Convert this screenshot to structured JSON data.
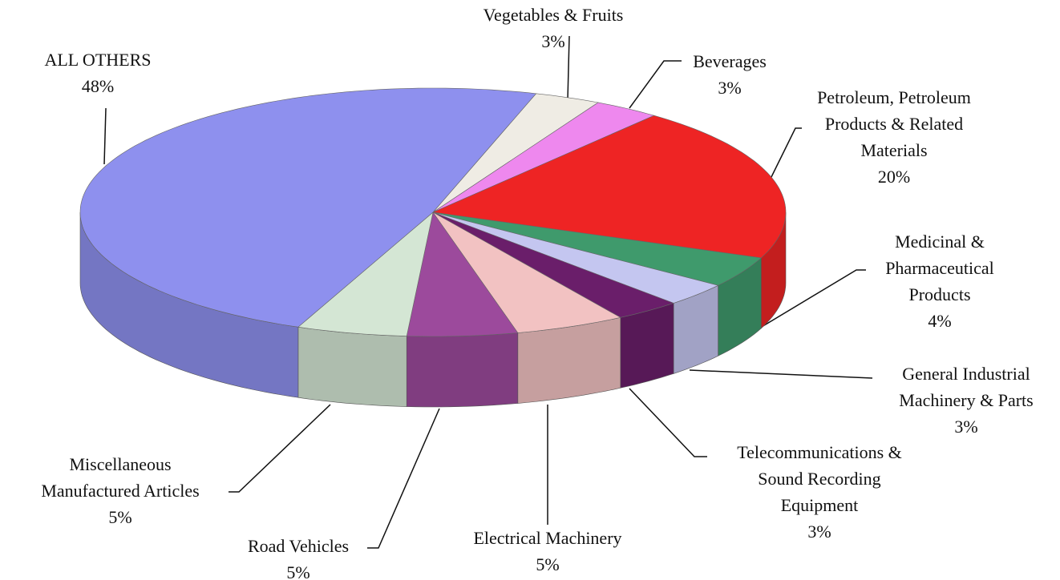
{
  "chart_data": {
    "type": "pie",
    "categories": [
      "Vegetables & Fruits",
      "Beverages",
      "Petroleum, Petroleum Products & Related Materials",
      "Medicinal & Pharmaceutical Products",
      "General Industrial Machinery & Parts",
      "Telecommunications & Sound Recording Equipment",
      "Electrical Machinery",
      "Road Vehicles",
      "Miscellaneous Manufactured Articles",
      "ALL OTHERS"
    ],
    "values": [
      3,
      3,
      20,
      4,
      3,
      3,
      5,
      5,
      5,
      48
    ],
    "value_labels": [
      "3%",
      "3%",
      "20%",
      "4%",
      "3%",
      "3%",
      "5%",
      "5%",
      "5%",
      "48%"
    ],
    "colors": [
      "#efece4",
      "#ee88ee",
      "#ee2424",
      "#3f9a6c",
      "#c4c6f0",
      "#6a1e6a",
      "#f2c2c2",
      "#9c4a9c",
      "#d4e6d4",
      "#8e90ee"
    ]
  }
}
